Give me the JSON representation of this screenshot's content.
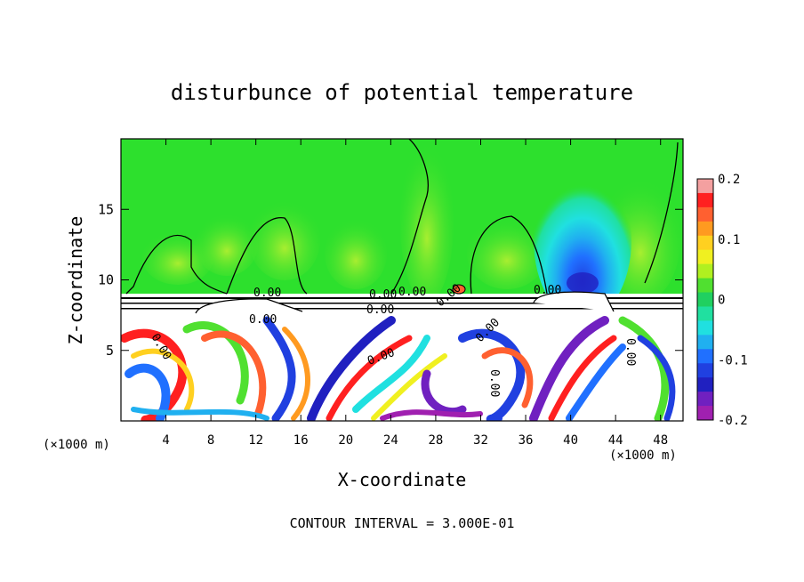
{
  "chart_data": {
    "type": "heatmap",
    "title": "disturbunce of potential temperature",
    "xlabel": "X-coordinate",
    "ylabel": "Z-coordinate",
    "x_unit_left": "(×1000 m)",
    "x_unit_right": "(×1000 m)",
    "footer": "CONTOUR INTERVAL = 3.000E-01",
    "xlim": [
      0,
      50
    ],
    "ylim": [
      0,
      20
    ],
    "x_ticks": [
      4,
      8,
      12,
      16,
      20,
      24,
      28,
      32,
      36,
      40,
      44,
      48
    ],
    "y_ticks": [
      5,
      10,
      15
    ],
    "colorbar": {
      "range": [
        -0.2,
        0.2
      ],
      "ticks": [
        "0.2",
        "0.1",
        "0",
        "-0.1",
        "-0.2"
      ],
      "colors": [
        "#f4a0a0",
        "#ff2020",
        "#ff6030",
        "#ff9a20",
        "#ffd020",
        "#f0f020",
        "#b0f020",
        "#50e030",
        "#20d060",
        "#20e0a0",
        "#20e0e0",
        "#20b0f0",
        "#2070ff",
        "#2040e0",
        "#2020c0",
        "#7020c0",
        "#a020b0"
      ]
    },
    "contour_labels": [
      "0.00",
      "0.00",
      "0.00",
      "0.00",
      "0.00",
      "0.00",
      "0.00",
      "0.00",
      "0.00",
      "0.00",
      "0.00",
      "0.00"
    ],
    "field_colors": {
      "upper_background": "#2de02d",
      "cool_plume": "#1ad7b4",
      "warm_patch": "#64e628",
      "saturated_white": "#ffffff"
    }
  }
}
